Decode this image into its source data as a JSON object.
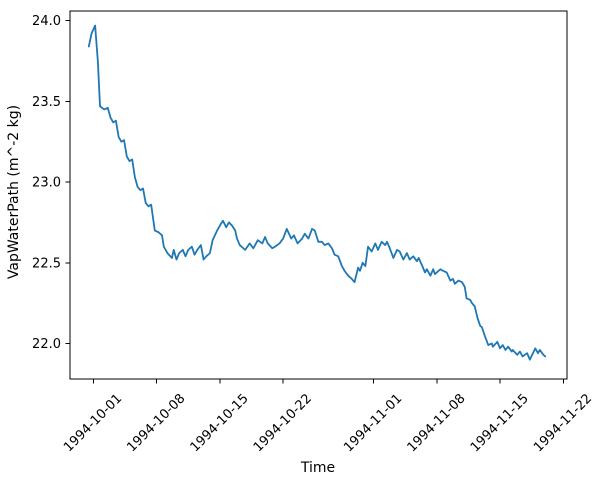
{
  "chart_data": {
    "type": "line",
    "title": "",
    "xlabel": "Time",
    "ylabel": "VapWaterPath (m^-2 kg)",
    "legend": "none",
    "grid": false,
    "line_color": "#1f77b4",
    "axis_color": "#000000",
    "background_color": "#ffffff",
    "ylim": [
      21.78,
      24.06
    ],
    "xlim_days_since_1994_10_01": [
      -2.58,
      52.41
    ],
    "y_ticks": [
      {
        "label": "22.0",
        "value": 22.0
      },
      {
        "label": "22.5",
        "value": 22.5
      },
      {
        "label": "23.0",
        "value": 23.0
      },
      {
        "label": "23.5",
        "value": 23.5
      },
      {
        "label": "24.0",
        "value": 24.0
      }
    ],
    "x_ticks": [
      {
        "label": "1994-10-01",
        "day": 0
      },
      {
        "label": "1994-10-08",
        "day": 7
      },
      {
        "label": "1994-10-15",
        "day": 14
      },
      {
        "label": "1994-10-22",
        "day": 21
      },
      {
        "label": "1994-11-01",
        "day": 31
      },
      {
        "label": "1994-11-08",
        "day": 38
      },
      {
        "label": "1994-11-15",
        "day": 45
      },
      {
        "label": "1994-11-22",
        "day": 52
      }
    ],
    "series": [
      {
        "name": "VapWaterPath",
        "x_unit": "days since 1994-10-01",
        "points": [
          [
            -0.5,
            23.84
          ],
          [
            -0.2,
            23.92
          ],
          [
            0.2,
            23.97
          ],
          [
            0.5,
            23.75
          ],
          [
            0.74,
            23.47
          ],
          [
            1.2,
            23.45
          ],
          [
            1.6,
            23.46
          ],
          [
            1.9,
            23.4
          ],
          [
            2.2,
            23.37
          ],
          [
            2.5,
            23.38
          ],
          [
            2.8,
            23.28
          ],
          [
            3.1,
            23.25
          ],
          [
            3.4,
            23.26
          ],
          [
            3.7,
            23.16
          ],
          [
            4.0,
            23.13
          ],
          [
            4.3,
            23.14
          ],
          [
            4.6,
            23.03
          ],
          [
            4.9,
            22.97
          ],
          [
            5.2,
            22.95
          ],
          [
            5.5,
            22.96
          ],
          [
            5.8,
            22.87
          ],
          [
            6.1,
            22.85
          ],
          [
            6.4,
            22.86
          ],
          [
            6.8,
            22.7
          ],
          [
            7.2,
            22.69
          ],
          [
            7.6,
            22.67
          ],
          [
            7.8,
            22.6
          ],
          [
            8.2,
            22.56
          ],
          [
            8.7,
            22.53
          ],
          [
            8.9,
            22.58
          ],
          [
            9.2,
            22.52
          ],
          [
            9.5,
            22.56
          ],
          [
            9.9,
            22.58
          ],
          [
            10.2,
            22.54
          ],
          [
            10.5,
            22.58
          ],
          [
            10.9,
            22.6
          ],
          [
            11.2,
            22.55
          ],
          [
            11.5,
            22.58
          ],
          [
            11.9,
            22.61
          ],
          [
            12.2,
            22.52
          ],
          [
            12.5,
            22.54
          ],
          [
            12.9,
            22.56
          ],
          [
            13.2,
            22.64
          ],
          [
            13.7,
            22.7
          ],
          [
            14.1,
            22.74
          ],
          [
            14.35,
            22.76
          ],
          [
            14.7,
            22.72
          ],
          [
            15.0,
            22.75
          ],
          [
            15.35,
            22.73
          ],
          [
            15.7,
            22.7
          ],
          [
            15.9,
            22.65
          ],
          [
            16.2,
            22.61
          ],
          [
            16.8,
            22.58
          ],
          [
            17.3,
            22.62
          ],
          [
            17.7,
            22.59
          ],
          [
            18.2,
            22.64
          ],
          [
            18.7,
            22.62
          ],
          [
            19.0,
            22.66
          ],
          [
            19.3,
            22.62
          ],
          [
            19.8,
            22.59
          ],
          [
            20.1,
            22.6
          ],
          [
            20.6,
            22.62
          ],
          [
            21.0,
            22.65
          ],
          [
            21.4,
            22.71
          ],
          [
            21.9,
            22.65
          ],
          [
            22.2,
            22.67
          ],
          [
            22.6,
            22.62
          ],
          [
            23.1,
            22.65
          ],
          [
            23.4,
            22.68
          ],
          [
            23.8,
            22.65
          ],
          [
            24.2,
            22.71
          ],
          [
            24.5,
            22.7
          ],
          [
            24.9,
            22.63
          ],
          [
            25.3,
            22.63
          ],
          [
            25.6,
            22.61
          ],
          [
            26.0,
            22.62
          ],
          [
            26.4,
            22.59
          ],
          [
            26.7,
            22.55
          ],
          [
            27.1,
            22.54
          ],
          [
            27.5,
            22.48
          ],
          [
            27.8,
            22.45
          ],
          [
            28.2,
            22.42
          ],
          [
            28.6,
            22.4
          ],
          [
            28.9,
            22.38
          ],
          [
            29.3,
            22.47
          ],
          [
            29.5,
            22.45
          ],
          [
            29.8,
            22.5
          ],
          [
            30.1,
            22.48
          ],
          [
            30.4,
            22.6
          ],
          [
            30.8,
            22.57
          ],
          [
            31.2,
            22.62
          ],
          [
            31.5,
            22.58
          ],
          [
            31.9,
            22.63
          ],
          [
            32.3,
            22.61
          ],
          [
            32.5,
            22.63
          ],
          [
            32.8,
            22.59
          ],
          [
            33.2,
            22.53
          ],
          [
            33.6,
            22.58
          ],
          [
            33.9,
            22.57
          ],
          [
            34.3,
            22.52
          ],
          [
            34.7,
            22.56
          ],
          [
            35.0,
            22.52
          ],
          [
            35.4,
            22.54
          ],
          [
            35.8,
            22.51
          ],
          [
            36.0,
            22.53
          ],
          [
            36.4,
            22.48
          ],
          [
            36.7,
            22.44
          ],
          [
            36.9,
            22.46
          ],
          [
            37.3,
            22.42
          ],
          [
            37.6,
            22.46
          ],
          [
            37.8,
            22.43
          ],
          [
            38.4,
            22.46
          ],
          [
            38.7,
            22.45
          ],
          [
            39.1,
            22.44
          ],
          [
            39.5,
            22.39
          ],
          [
            39.8,
            22.4
          ],
          [
            40.0,
            22.37
          ],
          [
            40.4,
            22.39
          ],
          [
            40.8,
            22.38
          ],
          [
            41.1,
            22.35
          ],
          [
            41.3,
            22.28
          ],
          [
            41.7,
            22.27
          ],
          [
            41.9,
            22.25
          ],
          [
            42.2,
            22.23
          ],
          [
            42.5,
            22.16
          ],
          [
            42.8,
            22.11
          ],
          [
            43.0,
            22.1
          ],
          [
            43.3,
            22.05
          ],
          [
            43.7,
            21.99
          ],
          [
            44.1,
            22.0
          ],
          [
            44.2,
            21.98
          ],
          [
            44.7,
            22.01
          ],
          [
            45.0,
            21.97
          ],
          [
            45.3,
            21.99
          ],
          [
            45.6,
            21.96
          ],
          [
            45.9,
            21.98
          ],
          [
            46.3,
            21.95
          ],
          [
            46.4,
            21.96
          ],
          [
            46.9,
            21.93
          ],
          [
            47.2,
            21.95
          ],
          [
            47.5,
            21.92
          ],
          [
            48.0,
            21.94
          ],
          [
            48.3,
            21.9
          ],
          [
            48.9,
            21.97
          ],
          [
            49.2,
            21.94
          ],
          [
            49.4,
            21.96
          ],
          [
            49.8,
            21.93
          ],
          [
            50.0,
            21.92
          ]
        ]
      }
    ]
  }
}
